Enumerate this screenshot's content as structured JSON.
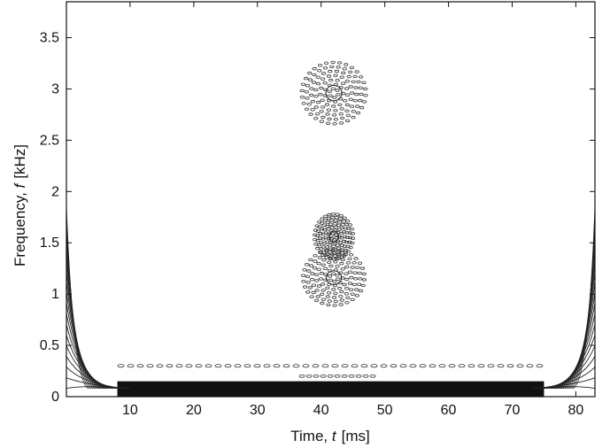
{
  "chart_data": {
    "type": "heatmap",
    "title": "",
    "xlabel": {
      "prefix": "Time, ",
      "symbol": "t",
      "unit": "[ms]"
    },
    "ylabel": {
      "prefix": "Frequency, ",
      "symbol": "f",
      "unit": "[kHz]"
    },
    "xlim": [
      0,
      83
    ],
    "ylim": [
      0,
      3.85
    ],
    "xticks": [
      10,
      20,
      30,
      40,
      50,
      60,
      70,
      80
    ],
    "xtick_labels": [
      "10",
      "20",
      "30",
      "40",
      "50",
      "60",
      "70",
      "80"
    ],
    "yticks": [
      0,
      0.5,
      1,
      1.5,
      2,
      2.5,
      3,
      3.5
    ],
    "ytick_labels": [
      "0",
      "0.5",
      "1",
      "1.5",
      "2",
      "2.5",
      "3",
      "3.5"
    ],
    "grid": false,
    "colormap": "contour-lines-black",
    "components": [
      {
        "name": "",
        "shape": "circle",
        "t_center": 42,
        "f_center": 2.96,
        "t_halfwidth": 5.0,
        "f_halfwidth": 0.3
      },
      {
        "name": "",
        "shape": "ellipse",
        "t_center": 42,
        "f_center": 1.56,
        "t_halfwidth": 3.0,
        "f_halfwidth": 0.22
      },
      {
        "name": "",
        "shape": "ellipse",
        "t_center": 42,
        "f_center": 1.16,
        "t_halfwidth": 4.8,
        "f_halfwidth": 0.27
      },
      {
        "name": "",
        "shape": "low-band",
        "t_start": 8,
        "t_end": 75,
        "f_low": 0.0,
        "f_high": 0.15
      },
      {
        "name": "",
        "shape": "edge-fan-left",
        "t_start": 0,
        "t_end": 10,
        "f_top": 1.85
      },
      {
        "name": "",
        "shape": "edge-fan-right",
        "t_start": 73,
        "t_end": 83,
        "f_top": 1.85
      }
    ]
  }
}
